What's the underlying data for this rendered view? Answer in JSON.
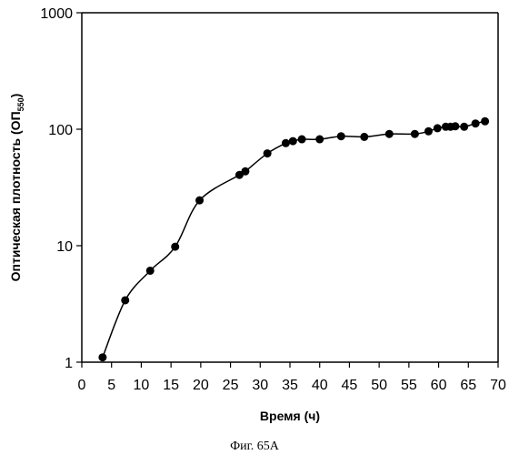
{
  "chart_data": {
    "type": "line",
    "x_scale": "linear",
    "y_scale": "log",
    "xlim": [
      0,
      70
    ],
    "ylim": [
      1,
      1000
    ],
    "x_ticks": [
      0,
      5,
      10,
      15,
      20,
      25,
      30,
      35,
      40,
      45,
      50,
      55,
      60,
      65,
      70
    ],
    "y_ticks": [
      1,
      10,
      100,
      1000
    ],
    "xlabel": "Время (ч)",
    "ylabel_main": "Оптическая плотность (ОП",
    "ylabel_sub": "550",
    "ylabel_close": ")",
    "grid": false,
    "legend": "none",
    "marker": "filled-circle",
    "line_style": "smooth",
    "line_color": "#000000",
    "marker_color": "#000000",
    "series": [
      {
        "x": [
          3.5,
          7.3,
          11.5,
          15.7,
          19.8,
          26.5,
          27.5,
          31.2,
          34.3,
          35.5,
          37.0,
          40.0,
          43.6,
          47.5,
          51.7,
          56.0,
          58.3,
          59.8,
          61.2,
          62.0,
          62.8,
          64.3,
          66.2,
          67.8
        ],
        "y": [
          1.1,
          3.4,
          6.1,
          9.8,
          24.5,
          40.5,
          43.5,
          62,
          76,
          79,
          82,
          82,
          87,
          86,
          91,
          91,
          96,
          102,
          105,
          105,
          106,
          105,
          112,
          117
        ]
      }
    ]
  },
  "caption": "Фиг. 65А"
}
